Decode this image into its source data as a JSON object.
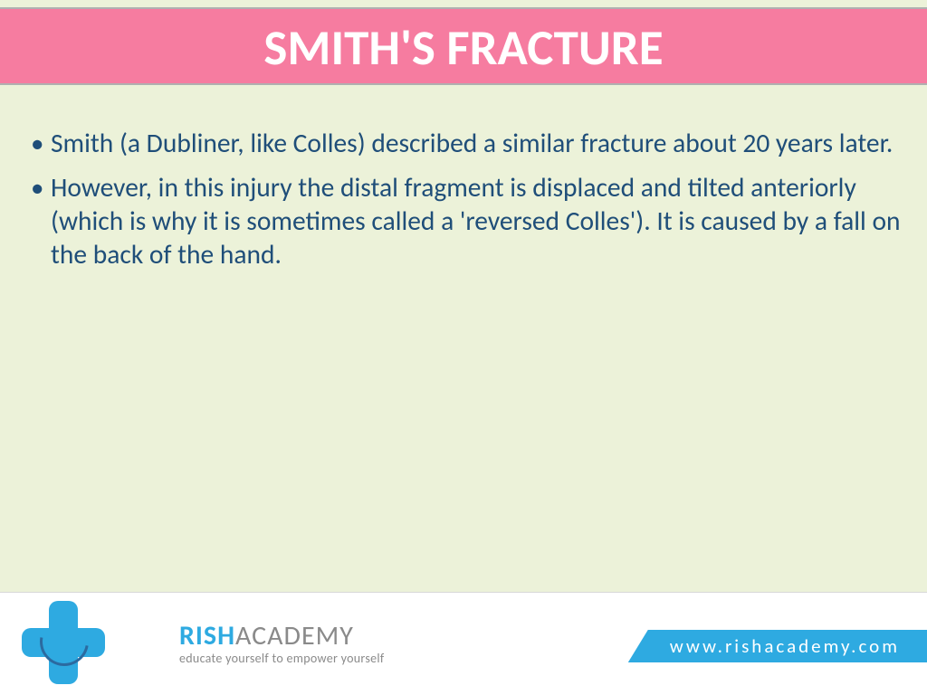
{
  "colors": {
    "slide_bg": "#ecf2d9",
    "title_bg": "#f67ca0",
    "title_text": "#ffffff",
    "body_text": "#1f4e79",
    "footer_bg": "#ffffff",
    "logo_blue": "#2eaae1",
    "brand_color": "#2eaae1",
    "brand_gray": "#8a8a8a",
    "ribbon_bg": "#2eaae1",
    "ribbon_text": "#ffffff"
  },
  "title": "SMITH'S FRACTURE",
  "bullets": [
    "Smith (a Dubliner, like Colles) described a similar fracture about 20 years later.",
    "However, in this injury the distal fragment is displaced and tilted anteriorly (which is why it is sometimes called a 'reversed Colles'). It is caused by a fall on the back of the hand."
  ],
  "brand": {
    "strong": "RISH",
    "light": "ACADEMY",
    "tagline": "educate yourself to empower yourself"
  },
  "url": "www.rishacademy.com"
}
